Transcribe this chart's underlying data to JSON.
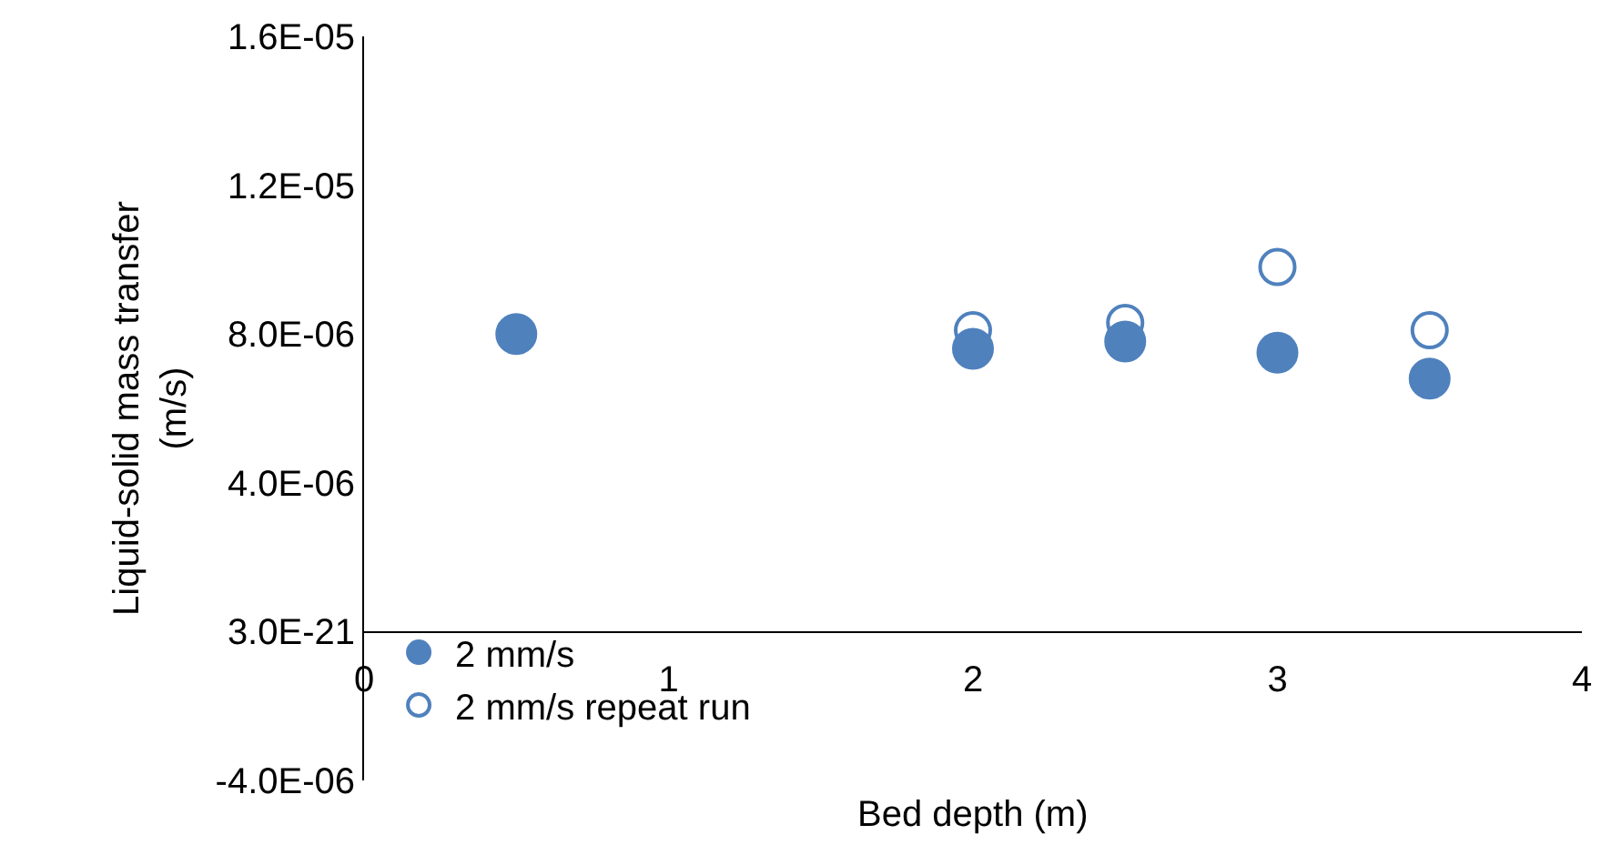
{
  "chart_data": {
    "type": "scatter",
    "xlabel": "Bed depth (m)",
    "ylabel": "Liquid-solid mass transfer\n(m/s)",
    "xlim": [
      0,
      4
    ],
    "xticks": [
      0,
      1,
      2,
      3,
      4
    ],
    "ylim": [
      -4e-06,
      1.6e-05
    ],
    "yticks": [
      {
        "value": -4e-06,
        "label": "-4.0E-06"
      },
      {
        "value": 0,
        "label": "3.0E-21"
      },
      {
        "value": 4e-06,
        "label": "4.0E-06"
      },
      {
        "value": 8e-06,
        "label": "8.0E-06"
      },
      {
        "value": 1.2e-05,
        "label": "1.2E-05"
      },
      {
        "value": 1.6e-05,
        "label": "1.6E-05"
      }
    ],
    "legend": "bottom left",
    "marker": "circle",
    "series": [
      {
        "name": "2 mm/s",
        "color": "#4f81bd",
        "x": [
          0.5,
          2,
          2.5,
          3,
          3.5
        ],
        "values": [
          8e-06,
          7.6e-06,
          7.8e-06,
          7.5e-06,
          6.8e-06
        ]
      },
      {
        "name": "2 mm/s repeat run",
        "color": "#4f81bd",
        "x": [
          2,
          2.5,
          3,
          3.5
        ],
        "values": [
          8.1e-06,
          8.3e-06,
          9.8e-06,
          8.1e-06
        ]
      }
    ]
  }
}
